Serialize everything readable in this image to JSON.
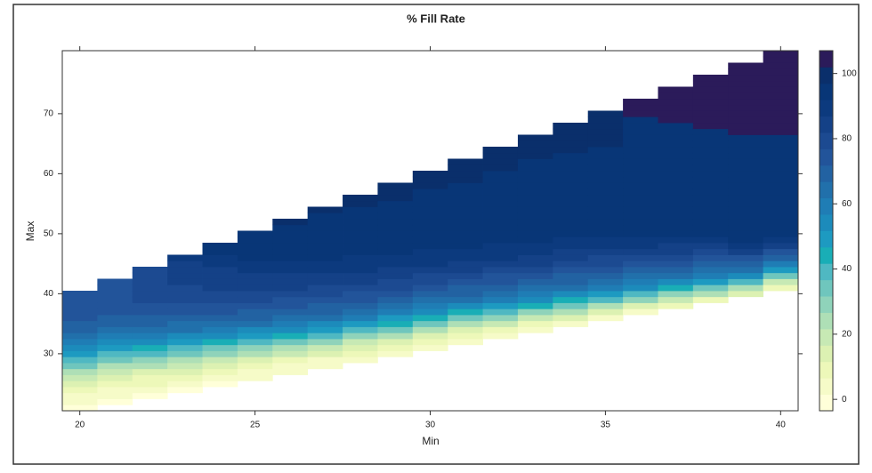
{
  "chart_data": {
    "type": "heatmap",
    "title": "% Fill Rate",
    "x_label": "Min",
    "y_label": "Max",
    "x": [
      20,
      21,
      22,
      23,
      24,
      25,
      26,
      27,
      28,
      29,
      30,
      31,
      32,
      33,
      34,
      35,
      36,
      37,
      38,
      39,
      40
    ],
    "y": [
      21,
      22,
      23,
      24,
      25,
      26,
      27,
      28,
      29,
      30,
      31,
      32,
      33,
      34,
      35,
      36,
      37,
      38,
      39,
      40,
      41,
      42,
      43,
      44,
      45,
      46,
      47,
      48,
      49,
      50,
      51,
      52,
      53,
      54,
      55,
      56,
      57,
      58,
      59,
      60,
      61,
      62,
      63,
      64,
      65,
      66,
      67,
      68,
      69,
      70,
      71,
      72,
      73,
      74,
      75,
      76,
      77,
      78,
      79,
      80
    ],
    "z": [
      [
        0,
        3,
        6,
        9,
        13,
        18,
        24,
        32,
        40,
        48,
        54,
        60,
        64,
        68,
        70,
        72,
        73,
        74,
        74,
        74,
        null,
        null,
        null,
        null,
        null,
        null,
        null,
        null,
        null,
        null,
        null,
        null,
        null,
        null,
        null,
        null,
        null,
        null,
        null,
        null,
        null,
        null,
        null,
        null,
        null,
        null,
        null,
        null,
        null,
        null,
        null,
        null,
        null,
        null,
        null,
        null,
        null,
        null,
        null,
        null
      ],
      [
        null,
        0,
        3,
        6,
        10,
        14,
        19,
        25,
        33,
        41,
        49,
        55,
        61,
        65,
        68,
        71,
        73,
        74,
        75,
        76,
        76,
        76,
        null,
        null,
        null,
        null,
        null,
        null,
        null,
        null,
        null,
        null,
        null,
        null,
        null,
        null,
        null,
        null,
        null,
        null,
        null,
        null,
        null,
        null,
        null,
        null,
        null,
        null,
        null,
        null,
        null,
        null,
        null,
        null,
        null,
        null,
        null,
        null,
        null,
        null
      ],
      [
        null,
        null,
        1,
        4,
        7,
        11,
        16,
        22,
        29,
        37,
        45,
        52,
        58,
        63,
        67,
        70,
        73,
        75,
        77,
        78,
        78,
        78,
        80,
        80,
        null,
        null,
        null,
        null,
        null,
        null,
        null,
        null,
        null,
        null,
        null,
        null,
        null,
        null,
        null,
        null,
        null,
        null,
        null,
        null,
        null,
        null,
        null,
        null,
        null,
        null,
        null,
        null,
        null,
        null,
        null,
        null,
        null,
        null,
        null,
        null
      ],
      [
        null,
        null,
        null,
        1,
        4,
        8,
        12,
        18,
        25,
        33,
        41,
        49,
        56,
        62,
        66,
        70,
        73,
        76,
        78,
        80,
        80,
        82,
        82,
        82,
        84,
        90,
        null,
        null,
        null,
        null,
        null,
        null,
        null,
        null,
        null,
        null,
        null,
        null,
        null,
        null,
        null,
        null,
        null,
        null,
        null,
        null,
        null,
        null,
        null,
        null,
        null,
        null,
        null,
        null,
        null,
        null,
        null,
        null,
        null,
        null
      ],
      [
        null,
        null,
        null,
        null,
        1,
        5,
        9,
        14,
        20,
        28,
        36,
        44,
        52,
        59,
        64,
        68,
        72,
        75,
        78,
        80,
        82,
        84,
        85,
        86,
        88,
        90,
        92,
        94,
        null,
        null,
        null,
        null,
        null,
        null,
        null,
        null,
        null,
        null,
        null,
        null,
        null,
        null,
        null,
        null,
        null,
        null,
        null,
        null,
        null,
        null,
        null,
        null,
        null,
        null,
        null,
        null,
        null,
        null,
        null,
        null
      ],
      [
        null,
        null,
        null,
        null,
        null,
        2,
        5,
        10,
        16,
        23,
        31,
        40,
        48,
        56,
        62,
        67,
        71,
        74,
        77,
        80,
        82,
        84,
        86,
        88,
        90,
        92,
        94,
        95,
        95,
        96,
        null,
        null,
        null,
        null,
        null,
        null,
        null,
        null,
        null,
        null,
        null,
        null,
        null,
        null,
        null,
        null,
        null,
        null,
        null,
        null,
        null,
        null,
        null,
        null,
        null,
        null,
        null,
        null,
        null,
        null
      ],
      [
        null,
        null,
        null,
        null,
        null,
        null,
        2,
        6,
        11,
        18,
        26,
        35,
        44,
        52,
        60,
        65,
        70,
        73,
        76,
        79,
        82,
        84,
        86,
        88,
        90,
        92,
        94,
        95,
        95,
        96,
        96,
        97,
        null,
        null,
        null,
        null,
        null,
        null,
        null,
        null,
        null,
        null,
        null,
        null,
        null,
        null,
        null,
        null,
        null,
        null,
        null,
        null,
        null,
        null,
        null,
        null,
        null,
        null,
        null,
        null
      ],
      [
        null,
        null,
        null,
        null,
        null,
        null,
        null,
        2,
        6,
        12,
        20,
        29,
        38,
        47,
        55,
        62,
        67,
        71,
        75,
        78,
        81,
        84,
        86,
        88,
        90,
        92,
        94,
        95,
        95,
        95,
        96,
        96,
        96,
        97,
        null,
        null,
        null,
        null,
        null,
        null,
        null,
        null,
        null,
        null,
        null,
        null,
        null,
        null,
        null,
        null,
        null,
        null,
        null,
        null,
        null,
        null,
        null,
        null,
        null,
        null
      ],
      [
        null,
        null,
        null,
        null,
        null,
        null,
        null,
        null,
        3,
        7,
        13,
        21,
        30,
        40,
        49,
        57,
        63,
        68,
        72,
        76,
        79,
        82,
        85,
        87,
        89,
        91,
        93,
        95,
        95,
        95,
        96,
        96,
        96,
        96,
        97,
        97,
        null,
        null,
        null,
        null,
        null,
        null,
        null,
        null,
        null,
        null,
        null,
        null,
        null,
        null,
        null,
        null,
        null,
        null,
        null,
        null,
        null,
        null,
        null,
        null
      ],
      [
        null,
        null,
        null,
        null,
        null,
        null,
        null,
        null,
        null,
        3,
        8,
        14,
        22,
        32,
        42,
        51,
        58,
        64,
        69,
        73,
        77,
        80,
        83,
        86,
        88,
        90,
        92,
        94,
        95,
        95,
        96,
        96,
        96,
        96,
        96,
        97,
        97,
        97,
        null,
        null,
        null,
        null,
        null,
        null,
        null,
        null,
        null,
        null,
        null,
        null,
        null,
        null,
        null,
        null,
        null,
        null,
        null,
        null,
        null,
        null
      ],
      [
        null,
        null,
        null,
        null,
        null,
        null,
        null,
        null,
        null,
        null,
        3,
        8,
        15,
        24,
        34,
        44,
        53,
        60,
        66,
        70,
        74,
        78,
        81,
        84,
        87,
        89,
        91,
        93,
        95,
        95,
        96,
        96,
        96,
        96,
        96,
        96,
        96,
        97,
        97,
        97,
        null,
        null,
        null,
        null,
        null,
        null,
        null,
        null,
        null,
        null,
        null,
        null,
        null,
        null,
        null,
        null,
        null,
        null,
        null,
        null
      ],
      [
        null,
        null,
        null,
        null,
        null,
        null,
        null,
        null,
        null,
        null,
        null,
        4,
        9,
        16,
        25,
        36,
        46,
        55,
        62,
        67,
        71,
        75,
        79,
        82,
        85,
        88,
        90,
        92,
        94,
        95,
        96,
        96,
        96,
        96,
        96,
        96,
        96,
        96,
        97,
        97,
        97,
        97,
        null,
        null,
        null,
        null,
        null,
        null,
        null,
        null,
        null,
        null,
        null,
        null,
        null,
        null,
        null,
        null,
        null,
        null
      ],
      [
        null,
        null,
        null,
        null,
        null,
        null,
        null,
        null,
        null,
        null,
        null,
        null,
        4,
        10,
        18,
        28,
        39,
        50,
        58,
        64,
        68,
        72,
        76,
        80,
        84,
        87,
        89,
        91,
        93,
        95,
        96,
        96,
        96,
        96,
        96,
        96,
        96,
        96,
        96,
        96,
        97,
        97,
        97,
        97,
        null,
        null,
        null,
        null,
        null,
        null,
        null,
        null,
        null,
        null,
        null,
        null,
        null,
        null,
        null,
        null
      ],
      [
        null,
        null,
        null,
        null,
        null,
        null,
        null,
        null,
        null,
        null,
        null,
        null,
        null,
        5,
        11,
        20,
        30,
        42,
        53,
        60,
        66,
        70,
        74,
        78,
        82,
        85,
        88,
        90,
        92,
        94,
        95,
        96,
        96,
        96,
        96,
        96,
        96,
        96,
        96,
        96,
        96,
        96,
        97,
        97,
        97,
        97,
        null,
        null,
        null,
        null,
        null,
        null,
        null,
        null,
        null,
        null,
        null,
        null,
        null,
        null
      ],
      [
        null,
        null,
        null,
        null,
        null,
        null,
        null,
        null,
        null,
        null,
        null,
        null,
        null,
        null,
        5,
        12,
        22,
        33,
        45,
        55,
        62,
        67,
        71,
        75,
        79,
        83,
        86,
        89,
        91,
        93,
        95,
        96,
        96,
        96,
        96,
        96,
        96,
        96,
        96,
        96,
        96,
        96,
        96,
        97,
        97,
        97,
        97,
        97,
        null,
        null,
        null,
        null,
        null,
        null,
        null,
        null,
        null,
        null,
        null,
        null
      ],
      [
        null,
        null,
        null,
        null,
        null,
        null,
        null,
        null,
        null,
        null,
        null,
        null,
        null,
        null,
        null,
        6,
        14,
        25,
        37,
        49,
        58,
        64,
        69,
        73,
        77,
        81,
        85,
        88,
        91,
        93,
        95,
        96,
        96,
        96,
        96,
        96,
        96,
        96,
        96,
        96,
        96,
        96,
        96,
        96,
        97,
        97,
        97,
        97,
        97,
        97,
        null,
        null,
        null,
        null,
        null,
        null,
        null,
        null,
        null,
        null
      ],
      [
        null,
        null,
        null,
        null,
        null,
        null,
        null,
        null,
        null,
        null,
        null,
        null,
        null,
        null,
        null,
        null,
        6,
        15,
        27,
        40,
        52,
        60,
        66,
        71,
        75,
        79,
        83,
        87,
        90,
        93,
        95,
        96,
        96,
        96,
        96,
        96,
        96,
        96,
        96,
        96,
        96,
        96,
        96,
        96,
        96,
        96,
        96,
        96,
        96,
        103,
        103,
        103,
        null,
        null,
        null,
        null,
        null,
        null,
        null,
        null
      ],
      [
        null,
        null,
        null,
        null,
        null,
        null,
        null,
        null,
        null,
        null,
        null,
        null,
        null,
        null,
        null,
        null,
        null,
        8,
        18,
        30,
        44,
        55,
        62,
        68,
        73,
        77,
        82,
        86,
        90,
        93,
        95,
        96,
        96,
        96,
        96,
        96,
        96,
        96,
        96,
        96,
        96,
        96,
        96,
        96,
        96,
        96,
        96,
        96,
        103,
        103,
        103,
        103,
        103,
        103,
        null,
        null,
        null,
        null,
        null,
        null
      ],
      [
        null,
        null,
        null,
        null,
        null,
        null,
        null,
        null,
        null,
        null,
        null,
        null,
        null,
        null,
        null,
        null,
        null,
        null,
        10,
        22,
        35,
        48,
        58,
        65,
        71,
        76,
        81,
        86,
        90,
        93,
        95,
        96,
        96,
        96,
        96,
        96,
        96,
        96,
        96,
        96,
        96,
        96,
        96,
        96,
        96,
        96,
        96,
        103,
        103,
        103,
        103,
        103,
        103,
        103,
        103,
        103,
        null,
        null,
        null,
        null
      ],
      [
        null,
        null,
        null,
        null,
        null,
        null,
        null,
        null,
        null,
        null,
        null,
        null,
        null,
        null,
        null,
        null,
        null,
        null,
        null,
        12,
        25,
        40,
        52,
        62,
        70,
        76,
        82,
        87,
        92,
        95,
        96,
        96,
        96,
        96,
        96,
        96,
        96,
        96,
        96,
        96,
        96,
        96,
        96,
        96,
        96,
        96,
        103,
        103,
        103,
        103,
        103,
        103,
        103,
        103,
        103,
        103,
        103,
        103,
        null,
        null
      ],
      [
        null,
        null,
        null,
        null,
        null,
        null,
        null,
        null,
        null,
        null,
        null,
        null,
        null,
        null,
        null,
        null,
        null,
        null,
        null,
        null,
        8,
        20,
        35,
        48,
        58,
        68,
        76,
        83,
        88,
        93,
        95,
        96,
        96,
        96,
        96,
        96,
        96,
        96,
        96,
        96,
        96,
        96,
        96,
        96,
        96,
        96,
        103,
        103,
        103,
        103,
        103,
        103,
        103,
        103,
        103,
        103,
        103,
        103,
        103,
        103
      ]
    ],
    "xlim": [
      19.5,
      40.5
    ],
    "ylim": [
      20.5,
      80.5
    ],
    "xticks": [
      20,
      25,
      30,
      35,
      40
    ],
    "yticks": [
      30,
      40,
      50,
      60,
      70
    ],
    "zlim": [
      -3.5,
      107
    ],
    "zticks": [
      0,
      20,
      40,
      60,
      80,
      100
    ],
    "colors": [
      "#ffffd9",
      "#f6fbc8",
      "#edf8b9",
      "#dcf1b2",
      "#c7e9b4",
      "#aedfb6",
      "#8fd3ba",
      "#6fc6bd",
      "#4fb8c2",
      "#19aeb6",
      "#1d9ac1",
      "#1c8bbb",
      "#1f7db5",
      "#2170ab",
      "#2262a2",
      "#22549a",
      "#1c4a91",
      "#144187",
      "#0c3a7e",
      "#083677",
      "#0a2f6b",
      "#2b1b5a"
    ]
  }
}
